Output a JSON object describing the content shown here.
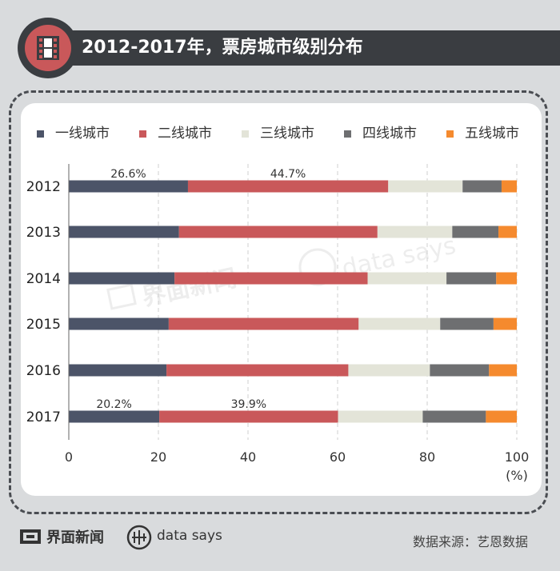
{
  "header": {
    "title": "2012-2017年，票房城市级别分布",
    "icon": "film-icon"
  },
  "footer": {
    "brand1": "界面新闻",
    "brand2": "data says",
    "source": "数据来源：艺恩数据"
  },
  "watermark": {
    "brand1": "界面新闻",
    "brand2": "data says"
  },
  "colors": {
    "tier1": "#4c5468",
    "tier2": "#c9585a",
    "tier3": "#e3e4d8",
    "tier4": "#6e6f71",
    "tier5": "#f58a2e",
    "title_bg": "#3a3d41",
    "page_bg": "#d9dbdd"
  },
  "chart_data": {
    "type": "bar",
    "orientation": "horizontal",
    "stacked": true,
    "categories": [
      "2012",
      "2013",
      "2014",
      "2015",
      "2016",
      "2017"
    ],
    "series": [
      {
        "name": "一线城市",
        "values": [
          26.6,
          24.6,
          23.6,
          22.3,
          21.8,
          20.2
        ]
      },
      {
        "name": "二线城市",
        "values": [
          44.7,
          44.3,
          43.1,
          42.4,
          40.6,
          39.9
        ]
      },
      {
        "name": "三线城市",
        "values": [
          16.6,
          16.7,
          17.6,
          18.2,
          18.2,
          18.9
        ]
      },
      {
        "name": "四线城市",
        "values": [
          8.7,
          10.3,
          11.1,
          11.9,
          13.2,
          14.1
        ]
      },
      {
        "name": "五线城市",
        "values": [
          3.4,
          4.1,
          4.6,
          5.2,
          6.2,
          6.9
        ]
      }
    ],
    "data_labels": [
      {
        "category": "2012",
        "series": "一线城市",
        "text": "26.6%"
      },
      {
        "category": "2012",
        "series": "二线城市",
        "text": "44.7%"
      },
      {
        "category": "2017",
        "series": "一线城市",
        "text": "20.2%"
      },
      {
        "category": "2017",
        "series": "二线城市",
        "text": "39.9%"
      }
    ],
    "x_ticks": [
      "0",
      "20",
      "40",
      "60",
      "80",
      "100"
    ],
    "xlim": [
      0,
      100
    ],
    "xlabel": "(%)",
    "grid": "vertical dashed",
    "legend_position": "top"
  }
}
